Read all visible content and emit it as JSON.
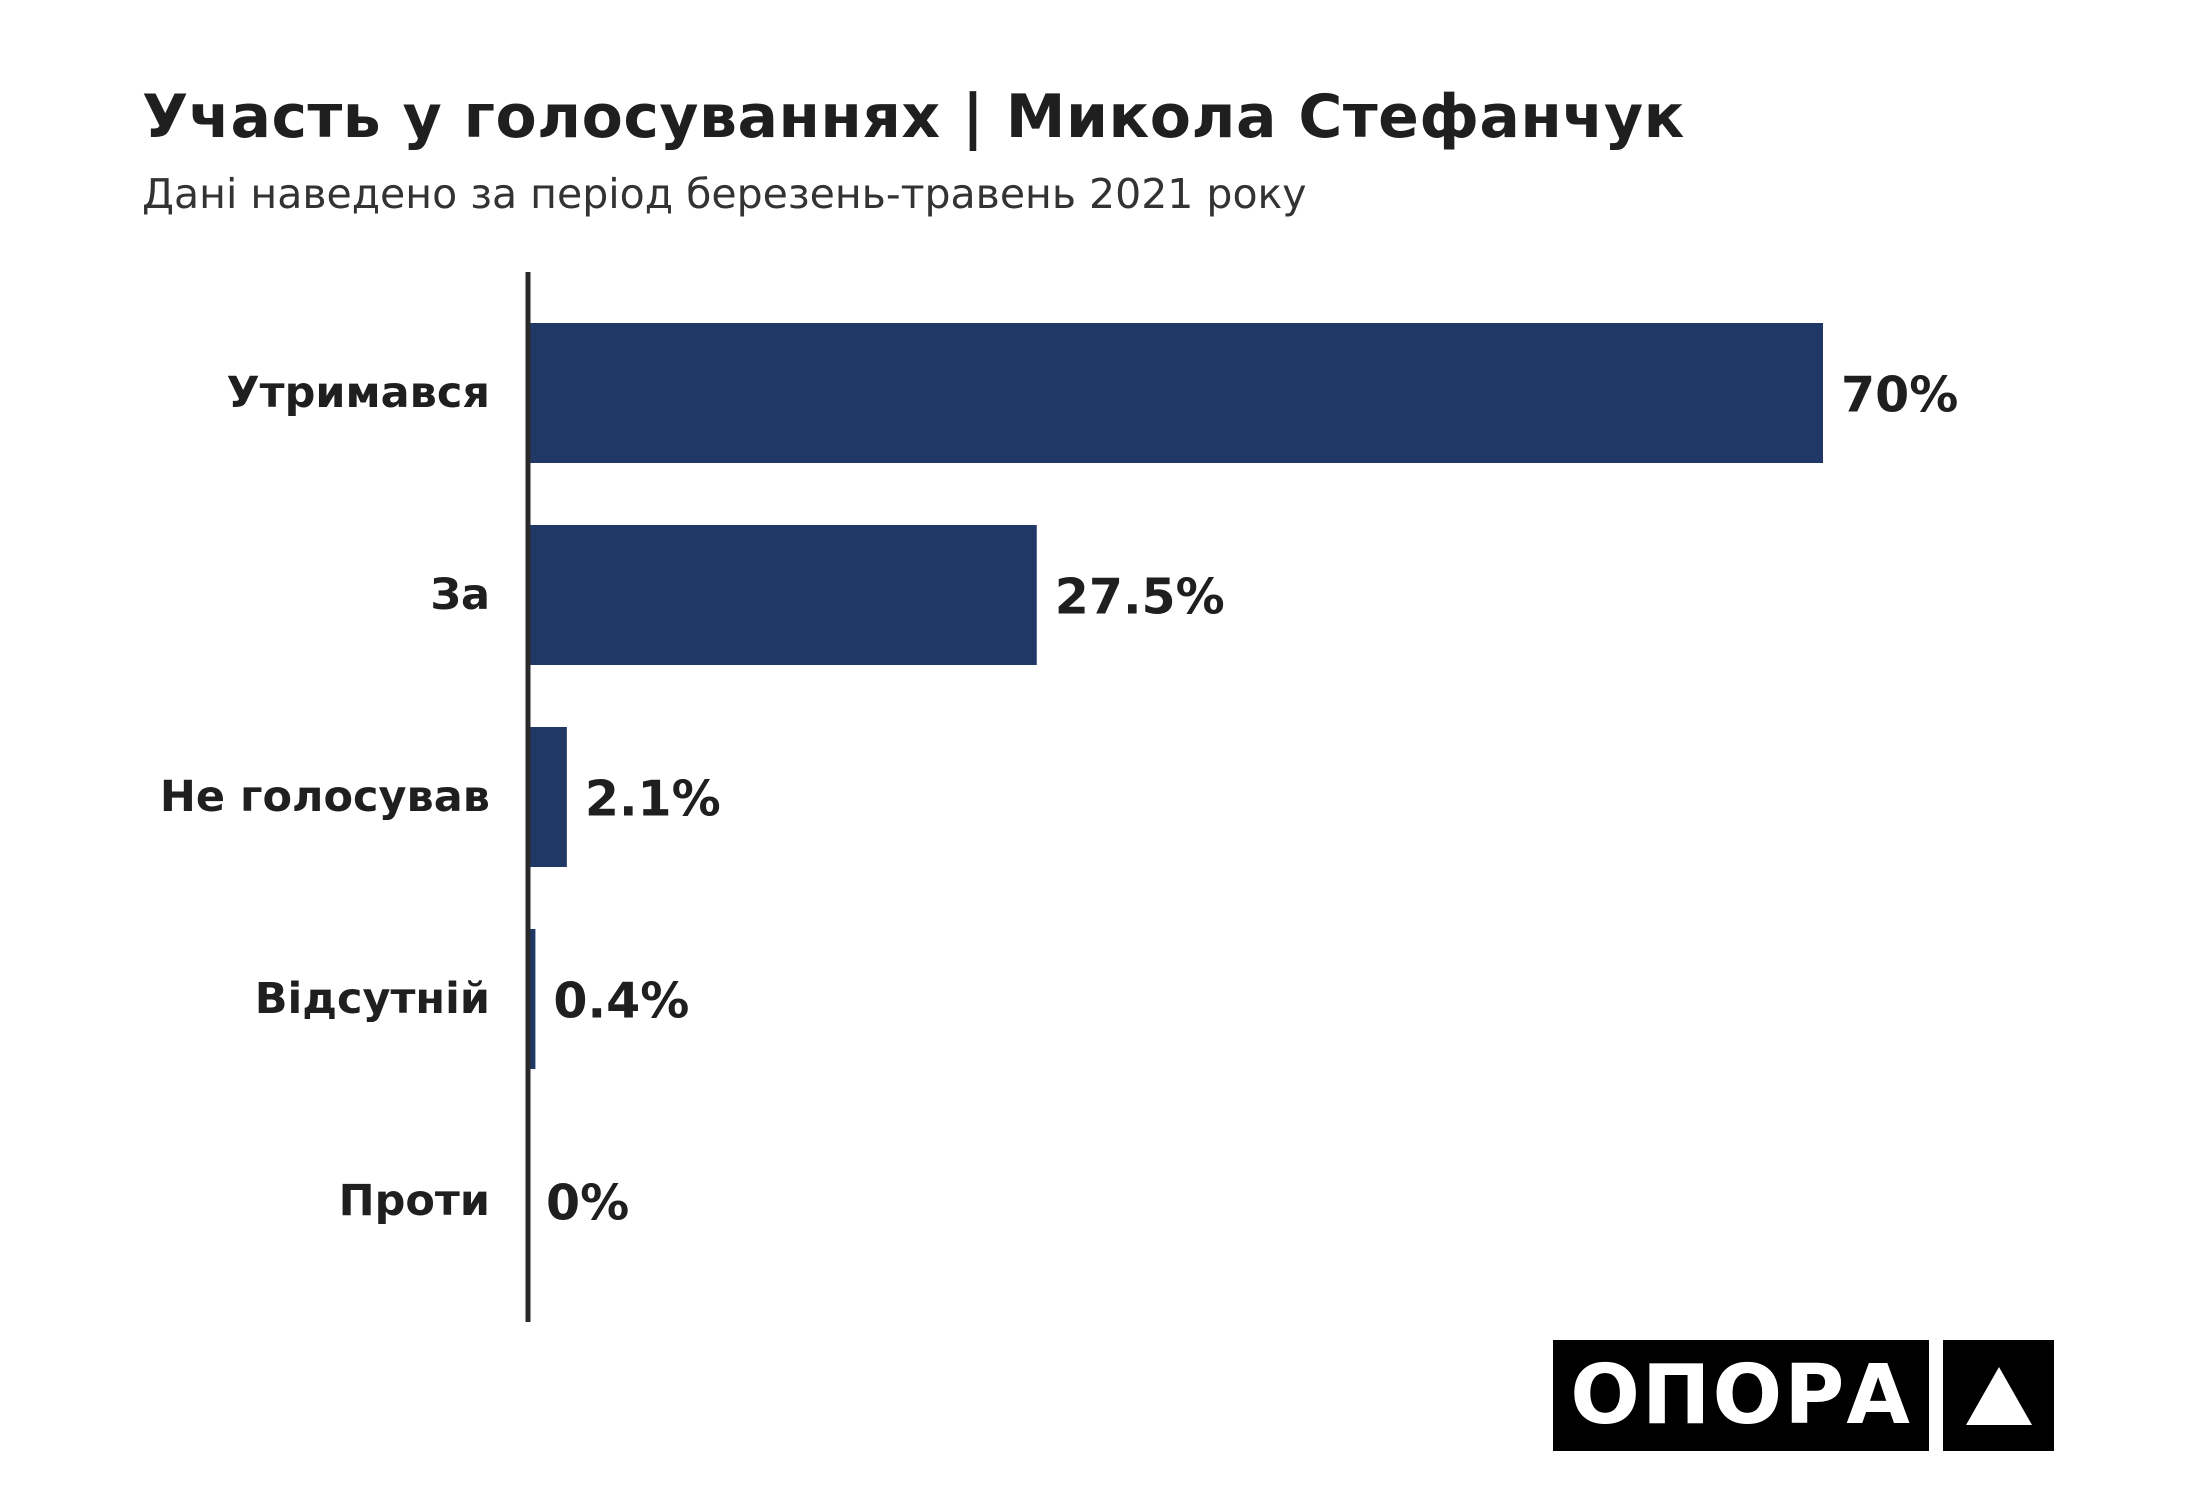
{
  "title": "Участь у голосуваннях | Микола Стефанчук",
  "subtitle": "Дані наведено за період березень-травень 2021 року",
  "colors": {
    "bar": "#1f3866",
    "axis": "#2a2a2a",
    "text": "#1f1f1f"
  },
  "chart_data": {
    "type": "bar",
    "orientation": "horizontal",
    "categories": [
      "Утримався",
      "За",
      "Не голосував",
      "Відсутній",
      "Проти"
    ],
    "values": [
      70,
      27.5,
      2.1,
      0.4,
      0
    ],
    "value_labels": [
      "70%",
      "27.5%",
      "2.1%",
      "0.4%",
      "0%"
    ],
    "xlim": [
      0,
      100
    ],
    "grid": false
  },
  "logo": {
    "text": "ОПОРА",
    "icon": "triangle-icon"
  }
}
